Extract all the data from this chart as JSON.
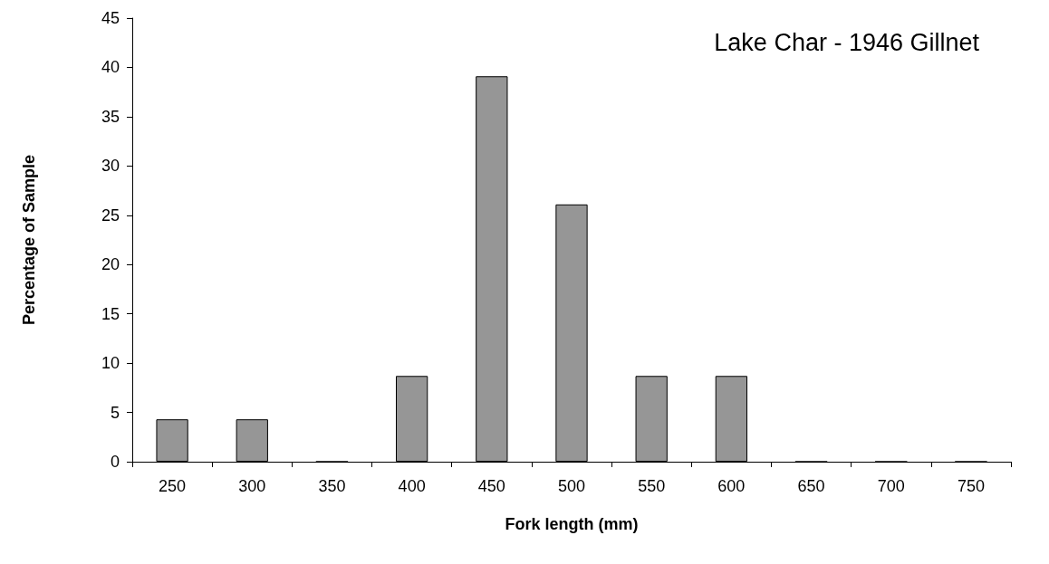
{
  "chart_data": {
    "type": "bar",
    "title": "Lake Char - 1946 Gillnet",
    "xlabel": "Fork length (mm)",
    "ylabel": "Percentage of Sample",
    "categories": [
      "250",
      "300",
      "350",
      "400",
      "450",
      "500",
      "550",
      "600",
      "650",
      "700",
      "750"
    ],
    "values": [
      4.3,
      4.3,
      0,
      8.7,
      39.1,
      26.1,
      8.7,
      8.7,
      0,
      0,
      0
    ],
    "color": "#969696",
    "ylim": [
      0,
      45
    ],
    "yticks": [
      0,
      5,
      10,
      15,
      20,
      25,
      30,
      35,
      40,
      45
    ],
    "grid": false
  }
}
